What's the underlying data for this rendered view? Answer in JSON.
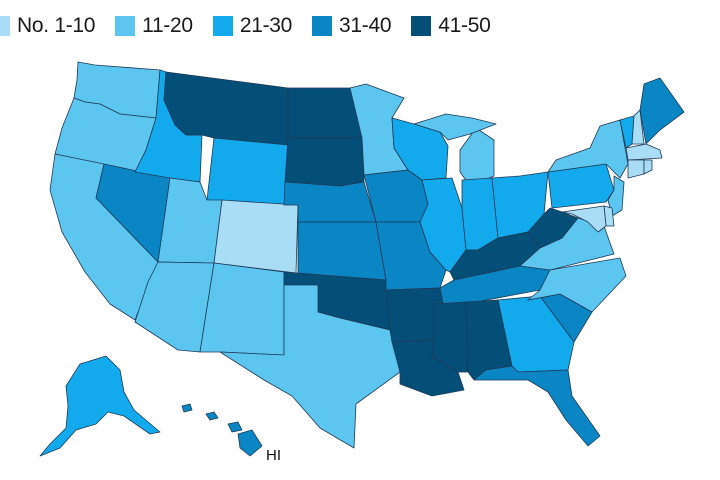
{
  "legend": [
    {
      "label": "No. 1-10",
      "color": "#a9dcf5"
    },
    {
      "label": "11-20",
      "color": "#5cc6f1"
    },
    {
      "label": "21-30",
      "color": "#12aaec"
    },
    {
      "label": "31-40",
      "color": "#0a86c5"
    },
    {
      "label": "41-50",
      "color": "#034f77"
    }
  ],
  "map_labels": {
    "hawaii": "HI"
  },
  "states": {
    "WA": 1,
    "OR": 1,
    "CA": 1,
    "NV": 3,
    "ID": 2,
    "MT": 4,
    "WY": 2,
    "UT": 1,
    "AZ": 1,
    "CO": 0,
    "NM": 1,
    "ND": 4,
    "SD": 4,
    "NE": 3,
    "KS": 3,
    "OK": 4,
    "TX": 1,
    "MN": 1,
    "IA": 3,
    "MO": 3,
    "AR": 4,
    "LA": 4,
    "WI": 2,
    "IL": 2,
    "MI": 1,
    "IN": 2,
    "OH": 2,
    "KY": 4,
    "TN": 3,
    "MS": 4,
    "AL": 4,
    "GA": 2,
    "FL": 3,
    "SC": 3,
    "NC": 1,
    "VA": 1,
    "WV": 4,
    "PA": 2,
    "NY": 1,
    "VT": 2,
    "NH": 0,
    "ME": 3,
    "MA": 0,
    "CT": 0,
    "RI": 0,
    "NJ": 1,
    "DE": 0,
    "MD": 0,
    "AK": 2,
    "HI": 3
  }
}
